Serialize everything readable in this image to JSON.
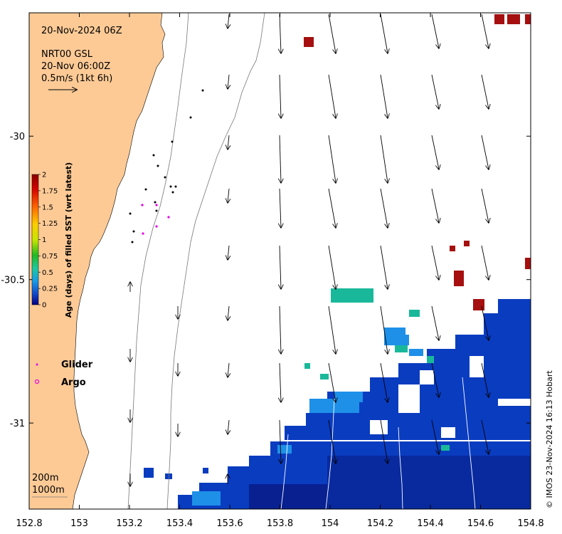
{
  "header": {
    "date_title": "20-Nov-2024 06Z",
    "model_name": "NRT00 GSL",
    "model_time": "20-Nov 06:00Z",
    "arrow_scale": "0.5m/s (1kt 6h)"
  },
  "axes": {
    "x_ticks": [
      "152.8",
      "153",
      "153.2",
      "153.4",
      "153.6",
      "153.8",
      "154",
      "154.2",
      "154.4",
      "154.6",
      "154.8"
    ],
    "x_values": [
      152.8,
      153.0,
      153.2,
      153.4,
      153.6,
      153.8,
      154.0,
      154.2,
      154.4,
      154.6,
      154.8
    ],
    "y_ticks": [
      "-30",
      "-30.5",
      "-31"
    ],
    "y_values": [
      -30,
      -30.5,
      -31
    ],
    "lon_range": [
      152.8,
      154.8
    ],
    "lat_range": [
      -31.3,
      -29.57
    ]
  },
  "colorbar": {
    "title": "Age (days) of filled SST (wrt latest)",
    "ticks": [
      "2",
      "1.75",
      "1.5",
      "1.25",
      "1",
      "0.75",
      "0.5",
      "0.25",
      "0"
    ],
    "stops": [
      "#8b0000",
      "#d40000",
      "#ff6600",
      "#ffcc00",
      "#c8e600",
      "#22b822",
      "#1ec8a0",
      "#1a9ae6",
      "#1446c8",
      "#000080"
    ]
  },
  "legend": {
    "glider_label": "Glider",
    "argo_label": "Argo"
  },
  "isobaths": {
    "label_200": "200m",
    "label_1000": "1000m"
  },
  "credit": "© IMOS 23-Nov-2024 16:13 Hobart",
  "colors": {
    "land": "#fdca96",
    "deep": "#0a2aa8",
    "mid": "#0a3cc0",
    "teal": "#1ab89a",
    "lightblue": "#1e90e8",
    "darkred": "#a50f0f",
    "marker": "#e600e6"
  }
}
